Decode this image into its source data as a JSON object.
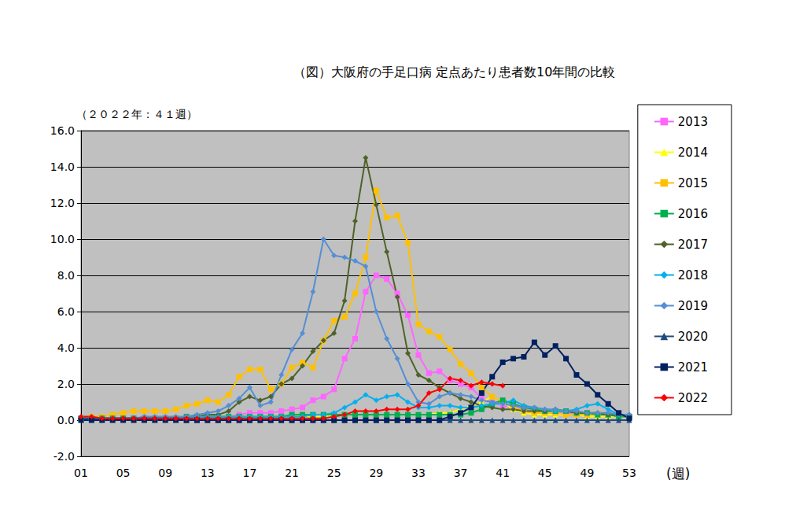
{
  "chart_data": {
    "type": "line",
    "title": "（図）大阪府の手足口病 定点あたり患者数10年間の比較",
    "subtitle": "（２０２２年：４１週）",
    "x_label": "(週)",
    "categories": [
      "01",
      null,
      null,
      null,
      "05",
      null,
      null,
      null,
      "09",
      null,
      null,
      null,
      "13",
      null,
      null,
      null,
      "17",
      null,
      null,
      null,
      "21",
      null,
      null,
      null,
      "25",
      null,
      null,
      null,
      "29",
      null,
      null,
      null,
      "33",
      null,
      null,
      null,
      "37",
      null,
      null,
      null,
      "41",
      null,
      null,
      null,
      "45",
      null,
      null,
      null,
      "49",
      null,
      null,
      null,
      "53"
    ],
    "ylim": [
      -2,
      16
    ],
    "yticks": [
      {
        "value": -2,
        "label": "-2.0"
      },
      {
        "value": 0,
        "label": "0.0"
      },
      {
        "value": 2,
        "label": "2.0"
      },
      {
        "value": 4,
        "label": "4.0"
      },
      {
        "value": 6,
        "label": "6.0"
      },
      {
        "value": 8,
        "label": "8.0"
      },
      {
        "value": 10,
        "label": "10.0"
      },
      {
        "value": 12,
        "label": "12.0"
      },
      {
        "value": 14,
        "label": "14.0"
      },
      {
        "value": 16,
        "label": "16.0"
      }
    ],
    "grid": true,
    "legend": "right",
    "series": [
      {
        "name": "2013",
        "color": "#FF66FF",
        "marker": "square",
        "line_style": "solid",
        "values": [
          0.1,
          0.1,
          0.1,
          0.1,
          0.1,
          0.1,
          0.1,
          0.1,
          0.1,
          0.1,
          0.1,
          0.1,
          0.2,
          0.2,
          0.2,
          0.3,
          0.4,
          0.4,
          0.4,
          0.5,
          0.6,
          0.7,
          1.1,
          1.3,
          1.7,
          3.4,
          4.5,
          7.1,
          8.0,
          7.8,
          7.0,
          5.8,
          3.6,
          2.6,
          2.7,
          2.2,
          2.0,
          1.8,
          1.2,
          1.0,
          0.8,
          0.7,
          0.6,
          0.5,
          0.5,
          0.4,
          0.4,
          0.4,
          0.3,
          0.3,
          0.3,
          0.2,
          0.2
        ]
      },
      {
        "name": "2014",
        "color": "#FFFF00",
        "marker": "triangle",
        "line_style": "solid",
        "values": [
          0.1,
          0.1,
          0.1,
          0.1,
          0.1,
          0.1,
          0.1,
          0.1,
          0.1,
          0.1,
          0.2,
          0.2,
          0.2,
          0.2,
          0.2,
          0.2,
          0.2,
          0.2,
          0.2,
          0.2,
          0.2,
          0.2,
          0.2,
          0.2,
          0.3,
          0.3,
          0.3,
          0.3,
          0.3,
          0.3,
          0.3,
          0.3,
          0.3,
          0.3,
          0.4,
          0.4,
          0.6,
          0.8,
          1.0,
          1.3,
          1.0,
          0.6,
          0.4,
          0.3,
          0.3,
          0.3,
          0.3,
          0.3,
          0.2,
          0.2,
          0.2,
          0.2,
          0.2
        ]
      },
      {
        "name": "2015",
        "color": "#FFC000",
        "marker": "square",
        "line_style": "solid",
        "values": [
          0.1,
          0.2,
          0.2,
          0.3,
          0.4,
          0.5,
          0.5,
          0.5,
          0.5,
          0.6,
          0.8,
          0.9,
          1.1,
          1.0,
          1.4,
          2.4,
          2.8,
          2.8,
          1.7,
          2.0,
          2.9,
          3.2,
          2.9,
          4.4,
          5.5,
          5.7,
          7.0,
          9.0,
          12.7,
          11.2,
          11.3,
          9.8,
          5.3,
          4.9,
          4.6,
          3.9,
          3.1,
          2.6,
          1.8,
          1.3,
          1.0,
          0.7,
          0.5,
          0.4,
          0.4,
          0.4,
          0.3,
          0.3,
          0.3,
          0.3,
          0.3,
          0.2,
          0.2
        ]
      },
      {
        "name": "2016",
        "color": "#00B050",
        "marker": "square",
        "line_style": "solid",
        "values": [
          0.1,
          0.1,
          0.1,
          0.1,
          0.1,
          0.1,
          0.1,
          0.1,
          0.1,
          0.1,
          0.2,
          0.2,
          0.2,
          0.2,
          0.2,
          0.2,
          0.2,
          0.2,
          0.2,
          0.2,
          0.3,
          0.3,
          0.3,
          0.3,
          0.3,
          0.3,
          0.3,
          0.3,
          0.3,
          0.3,
          0.3,
          0.3,
          0.3,
          0.3,
          0.3,
          0.3,
          0.3,
          0.4,
          0.6,
          0.9,
          1.1,
          0.9,
          0.7,
          0.6,
          0.5,
          0.5,
          0.5,
          0.4,
          0.4,
          0.3,
          0.3,
          0.2,
          0.2
        ]
      },
      {
        "name": "2017",
        "color": "#4F6228",
        "marker": "diamond",
        "line_style": "solid",
        "values": [
          0.1,
          0.1,
          0.1,
          0.1,
          0.1,
          0.1,
          0.1,
          0.1,
          0.1,
          0.1,
          0.2,
          0.2,
          0.3,
          0.3,
          0.5,
          1.0,
          1.3,
          1.1,
          1.3,
          2.0,
          2.3,
          3.0,
          3.8,
          4.4,
          4.8,
          6.6,
          11.0,
          14.5,
          11.9,
          9.3,
          6.8,
          3.7,
          2.5,
          2.2,
          1.8,
          1.5,
          1.2,
          1.0,
          0.8,
          0.7,
          0.6,
          0.6,
          0.5,
          0.5,
          0.5,
          0.6,
          0.5,
          0.4,
          0.4,
          0.4,
          0.3,
          0.3,
          0.3
        ]
      },
      {
        "name": "2018",
        "color": "#00B0F0",
        "marker": "diamond",
        "line_style": "solid",
        "values": [
          0.1,
          0.1,
          0.1,
          0.1,
          0.1,
          0.1,
          0.1,
          0.1,
          0.1,
          0.1,
          0.2,
          0.2,
          0.2,
          0.2,
          0.2,
          0.2,
          0.2,
          0.2,
          0.2,
          0.2,
          0.2,
          0.2,
          0.3,
          0.3,
          0.4,
          0.7,
          1.0,
          1.4,
          1.1,
          1.3,
          1.4,
          1.0,
          0.7,
          0.7,
          0.8,
          0.8,
          0.7,
          0.7,
          0.8,
          0.9,
          0.9,
          1.1,
          0.8,
          0.7,
          0.6,
          0.5,
          0.5,
          0.6,
          0.8,
          0.9,
          0.6,
          0.3,
          0.2
        ]
      },
      {
        "name": "2019",
        "color": "#558ED5",
        "marker": "diamond",
        "line_style": "solid",
        "values": [
          0.1,
          0.1,
          0.1,
          0.1,
          0.1,
          0.1,
          0.2,
          0.2,
          0.2,
          0.2,
          0.2,
          0.3,
          0.4,
          0.5,
          0.8,
          1.2,
          1.8,
          0.8,
          1.0,
          2.5,
          3.9,
          4.8,
          7.1,
          10.0,
          9.1,
          9.0,
          8.8,
          8.5,
          6.0,
          4.5,
          3.4,
          2.0,
          1.0,
          0.9,
          1.3,
          1.5,
          1.4,
          1.3,
          1.1,
          1.0,
          0.9,
          0.8,
          0.7,
          0.7,
          0.6,
          0.6,
          0.5,
          0.5,
          0.4,
          0.4,
          0.4,
          0.3,
          0.3
        ]
      },
      {
        "name": "2020",
        "color": "#1F497D",
        "marker": "triangle",
        "line_style": "solid",
        "values": [
          0.1,
          0.1,
          0.1,
          0.1,
          0.1,
          0.1,
          0.1,
          0.1,
          0.1,
          0.1,
          0.0,
          0.0,
          0.0,
          0.0,
          0.0,
          0.0,
          0.0,
          0.0,
          0.0,
          0.0,
          0.0,
          0.0,
          0.0,
          0.0,
          0.0,
          0.0,
          0.0,
          0.0,
          0.0,
          0.0,
          0.0,
          0.0,
          0.0,
          0.0,
          0.0,
          0.0,
          0.0,
          0.0,
          0.0,
          0.0,
          0.0,
          0.0,
          0.0,
          0.0,
          0.0,
          0.0,
          0.0,
          0.0,
          0.0,
          0.0,
          0.0,
          0.0,
          0.0
        ]
      },
      {
        "name": "2021",
        "color": "#002060",
        "marker": "square",
        "line_style": "solid",
        "values": [
          0.0,
          0.0,
          0.0,
          0.0,
          0.0,
          0.0,
          0.0,
          0.0,
          0.0,
          0.0,
          0.0,
          0.0,
          0.0,
          0.0,
          0.0,
          0.0,
          0.0,
          0.0,
          0.0,
          0.0,
          0.0,
          0.0,
          0.0,
          0.0,
          0.0,
          0.0,
          0.0,
          0.0,
          0.0,
          0.0,
          0.0,
          0.0,
          0.0,
          0.0,
          0.0,
          0.2,
          0.4,
          0.7,
          1.5,
          2.4,
          3.2,
          3.4,
          3.5,
          4.3,
          3.6,
          4.1,
          3.4,
          2.5,
          2.0,
          1.4,
          0.9,
          0.4,
          0.1
        ]
      },
      {
        "name": "2022",
        "color": "#FF0000",
        "marker": "diamond",
        "line_style": "solid",
        "values": [
          0.2,
          0.2,
          0.1,
          0.1,
          0.1,
          0.1,
          0.1,
          0.1,
          0.1,
          0.1,
          0.1,
          0.1,
          0.1,
          0.1,
          0.1,
          0.1,
          0.1,
          0.1,
          0.1,
          0.1,
          0.1,
          0.1,
          0.1,
          0.1,
          0.2,
          0.3,
          0.5,
          0.5,
          0.5,
          0.6,
          0.6,
          0.6,
          0.8,
          1.5,
          1.7,
          2.3,
          2.2,
          1.9,
          2.1,
          2.0,
          1.9,
          null,
          null,
          null,
          null,
          null,
          null,
          null,
          null,
          null,
          null,
          null,
          null
        ]
      }
    ]
  }
}
